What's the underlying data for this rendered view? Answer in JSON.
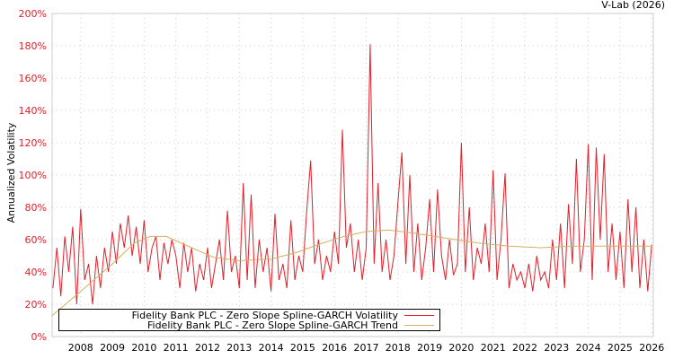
{
  "credit": "V-Lab (2026)",
  "chart_data": {
    "type": "line",
    "title": "",
    "xlabel": "",
    "ylabel": "Annualized Volatility",
    "xlim": [
      2007.1,
      2026.05
    ],
    "ylim": [
      0,
      200
    ],
    "x_ticks": [
      "2008",
      "2009",
      "2010",
      "2011",
      "2012",
      "2013",
      "2014",
      "2015",
      "2016",
      "2017",
      "2018",
      "2019",
      "2020",
      "2021",
      "2022",
      "2023",
      "2024",
      "2025",
      "2026"
    ],
    "y_ticks": [
      "0%",
      "20%",
      "40%",
      "60%",
      "80%",
      "100%",
      "120%",
      "140%",
      "160%",
      "180%",
      "200%"
    ],
    "grid": true,
    "legend_position": "bottom-left",
    "series": [
      {
        "name": "Fidelity Bank PLC - Zero Slope Spline-GARCH Volatility",
        "color": "#e0202a",
        "x_start": 2007.125,
        "x_step": 0.125,
        "values": [
          30,
          55,
          25,
          62,
          40,
          68,
          20,
          79,
          35,
          45,
          20,
          50,
          30,
          55,
          40,
          65,
          45,
          70,
          55,
          75,
          50,
          68,
          45,
          72,
          40,
          55,
          62,
          35,
          58,
          45,
          60,
          50,
          30,
          58,
          40,
          55,
          28,
          45,
          35,
          55,
          30,
          45,
          60,
          35,
          78,
          40,
          50,
          30,
          95,
          35,
          88,
          30,
          60,
          40,
          55,
          28,
          76,
          35,
          45,
          30,
          72,
          35,
          50,
          40,
          78,
          109,
          45,
          60,
          35,
          50,
          40,
          65,
          45,
          128,
          55,
          70,
          40,
          60,
          35,
          55,
          181,
          45,
          95,
          40,
          60,
          35,
          50,
          83,
          114,
          45,
          100,
          40,
          70,
          35,
          55,
          85,
          40,
          91,
          50,
          35,
          60,
          38,
          45,
          120,
          40,
          80,
          35,
          55,
          45,
          70,
          40,
          103,
          35,
          60,
          101,
          30,
          45,
          35,
          40,
          30,
          45,
          28,
          50,
          35,
          40,
          30,
          60,
          35,
          70,
          30,
          82,
          45,
          110,
          40,
          60,
          119,
          35,
          117,
          60,
          113,
          40,
          70,
          35,
          65,
          30,
          85,
          40,
          80,
          30,
          60,
          28,
          57
        ]
      },
      {
        "name": "Fidelity Bank PLC - Zero Slope Spline-GARCH Trend",
        "color": "#d4b060",
        "points": [
          [
            2007.1,
            13
          ],
          [
            2008,
            28
          ],
          [
            2009,
            45
          ],
          [
            2009.7,
            58
          ],
          [
            2010.2,
            62
          ],
          [
            2010.7,
            62
          ],
          [
            2011.5,
            55
          ],
          [
            2012.2,
            49
          ],
          [
            2013,
            47
          ],
          [
            2014,
            48
          ],
          [
            2014.8,
            52
          ],
          [
            2015.5,
            57
          ],
          [
            2016.3,
            62
          ],
          [
            2017,
            65
          ],
          [
            2017.7,
            66
          ],
          [
            2018.5,
            64
          ],
          [
            2019.5,
            61
          ],
          [
            2020.5,
            58
          ],
          [
            2021.5,
            56
          ],
          [
            2022.5,
            55
          ],
          [
            2023.5,
            56
          ],
          [
            2024.5,
            56
          ],
          [
            2026,
            56
          ]
        ]
      }
    ]
  }
}
